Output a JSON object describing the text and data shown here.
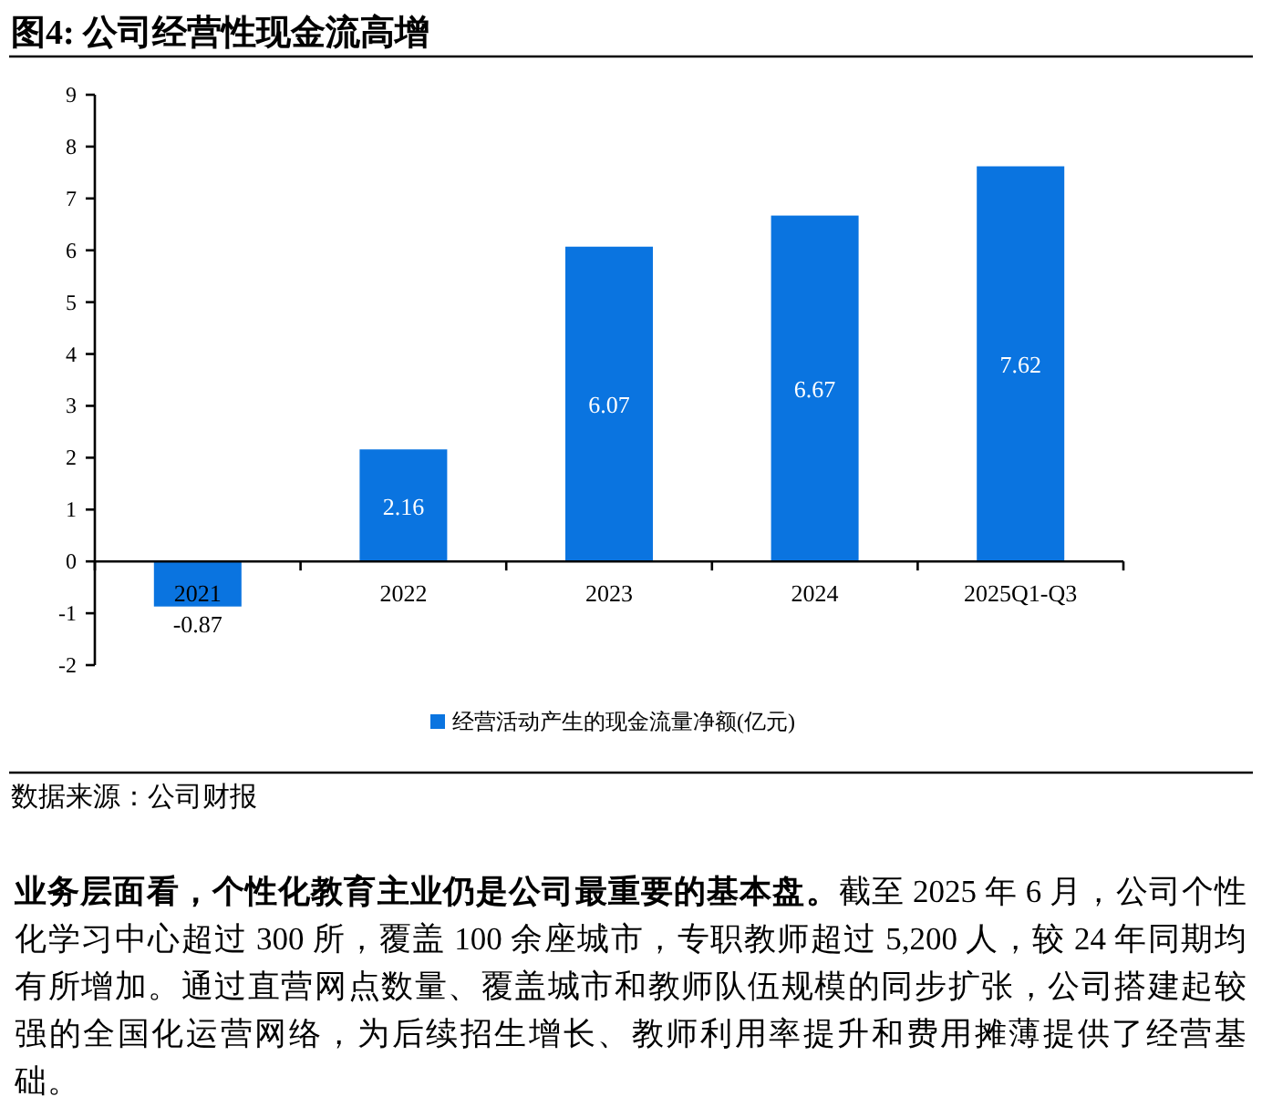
{
  "chart_data": {
    "type": "bar",
    "title": "图4:  公司经营性现金流高增",
    "categories": [
      "2021",
      "2022",
      "2023",
      "2024",
      "2025Q1-Q3"
    ],
    "series": [
      {
        "name": "经营活动产生的现金流量净额(亿元)",
        "color": "#0a74e0",
        "values": [
          -0.87,
          2.16,
          6.07,
          6.67,
          7.62
        ]
      }
    ],
    "ylim": [
      -2,
      9
    ],
    "yticks": [
      -2,
      -1,
      0,
      1,
      2,
      3,
      4,
      5,
      6,
      7,
      8,
      9
    ],
    "data_labels": true,
    "legend": "bottom",
    "grid": false,
    "annotations": [
      "数据来源：公司财报",
      "业务层面看，个性化教育主业仍是公司最重要的基本盘。",
      "截至 2025 年 6 月，公司个性化学习中心超过 300 所，覆盖 100 余座城市，专职教师超过 5,200 人，较 24 年同期均有所增加。通过直营网点数量、覆盖城市和教师队伍规模的同步扩张，公司搭建起较强的全国化运营网络，为后续招生增长、教师利用率提升和费用摊薄提供了经营基础。"
    ]
  }
}
